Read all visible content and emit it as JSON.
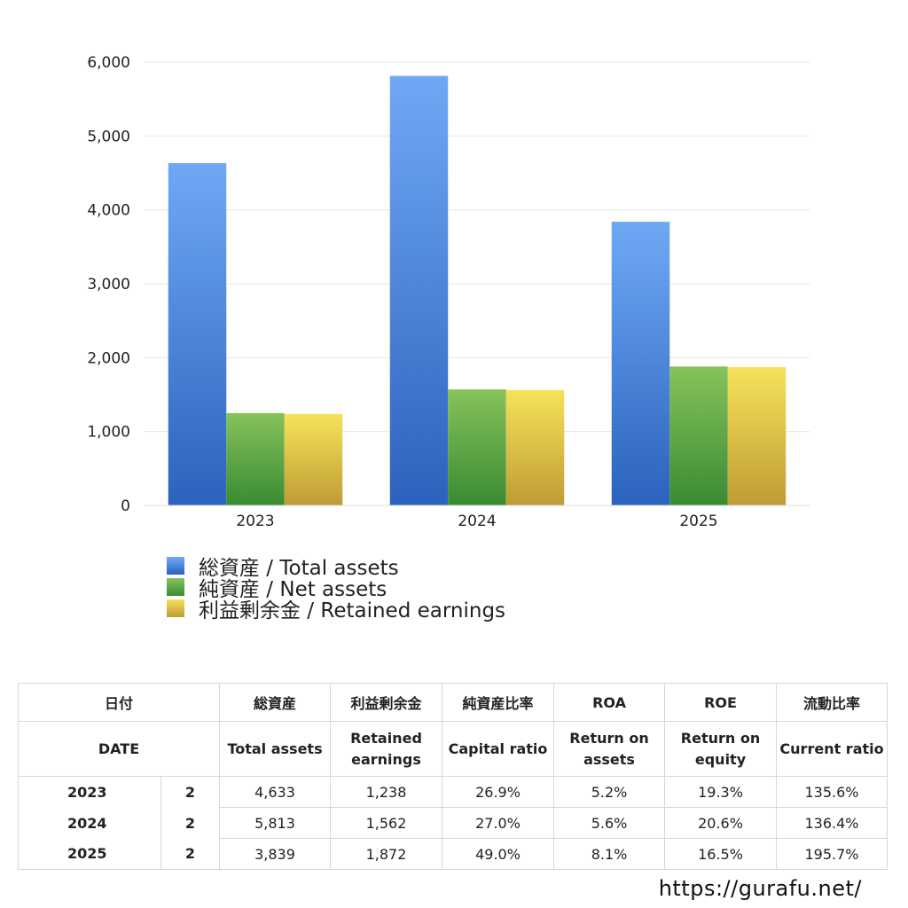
{
  "chart_data": {
    "type": "bar",
    "categories": [
      "2023",
      "2024",
      "2025"
    ],
    "series": [
      {
        "name": "総資産 / Total assets",
        "values": [
          4633,
          5813,
          3839
        ],
        "color_top": "#6fa9f5",
        "color_bottom": "#2b62bd"
      },
      {
        "name": "純資産 / Net assets",
        "values": [
          1250,
          1570,
          1880
        ],
        "color_top": "#86c35a",
        "color_bottom": "#3a8a33"
      },
      {
        "name": "利益剰余金 / Retained earnings",
        "values": [
          1238,
          1562,
          1872
        ],
        "color_top": "#f7e25a",
        "color_bottom": "#bf9c35"
      }
    ],
    "ylim": [
      0,
      6000
    ],
    "yticks": [
      0,
      1000,
      2000,
      3000,
      4000,
      5000,
      6000
    ],
    "ytick_labels": [
      "0",
      "1,000",
      "2,000",
      "3,000",
      "4,000",
      "5,000",
      "6,000"
    ],
    "grid": true,
    "legend_position": "bottom-left"
  },
  "table": {
    "header_jp": {
      "date": "日付",
      "total_assets": "総資産",
      "retained_earnings": "利益剰余金",
      "capital_ratio": "純資産比率",
      "roa": "ROA",
      "roe": "ROE",
      "current_ratio": "流動比率"
    },
    "header_en": {
      "date": "DATE",
      "total_assets": "Total assets",
      "retained_earnings_1": "Retained",
      "retained_earnings_2": "earnings",
      "capital_ratio": "Capital ratio",
      "roa_1": "Return on",
      "roa_2": "assets",
      "roe_1": "Return on",
      "roe_2": "equity",
      "current_ratio": "Current ratio"
    },
    "rows": [
      {
        "year": "2023",
        "flag": "2",
        "total_assets": "4,633",
        "retained_earnings": "1,238",
        "capital_ratio": "26.9%",
        "roa": "5.2%",
        "roe": "19.3%",
        "current_ratio": "135.6%"
      },
      {
        "year": "2024",
        "flag": "2",
        "total_assets": "5,813",
        "retained_earnings": "1,562",
        "capital_ratio": "27.0%",
        "roa": "5.6%",
        "roe": "20.6%",
        "current_ratio": "136.4%"
      },
      {
        "year": "2025",
        "flag": "2",
        "total_assets": "3,839",
        "retained_earnings": "1,872",
        "capital_ratio": "49.0%",
        "roa": "8.1%",
        "roe": "16.5%",
        "current_ratio": "195.7%"
      }
    ]
  },
  "footer": {
    "url": "https://gurafu.net/"
  }
}
